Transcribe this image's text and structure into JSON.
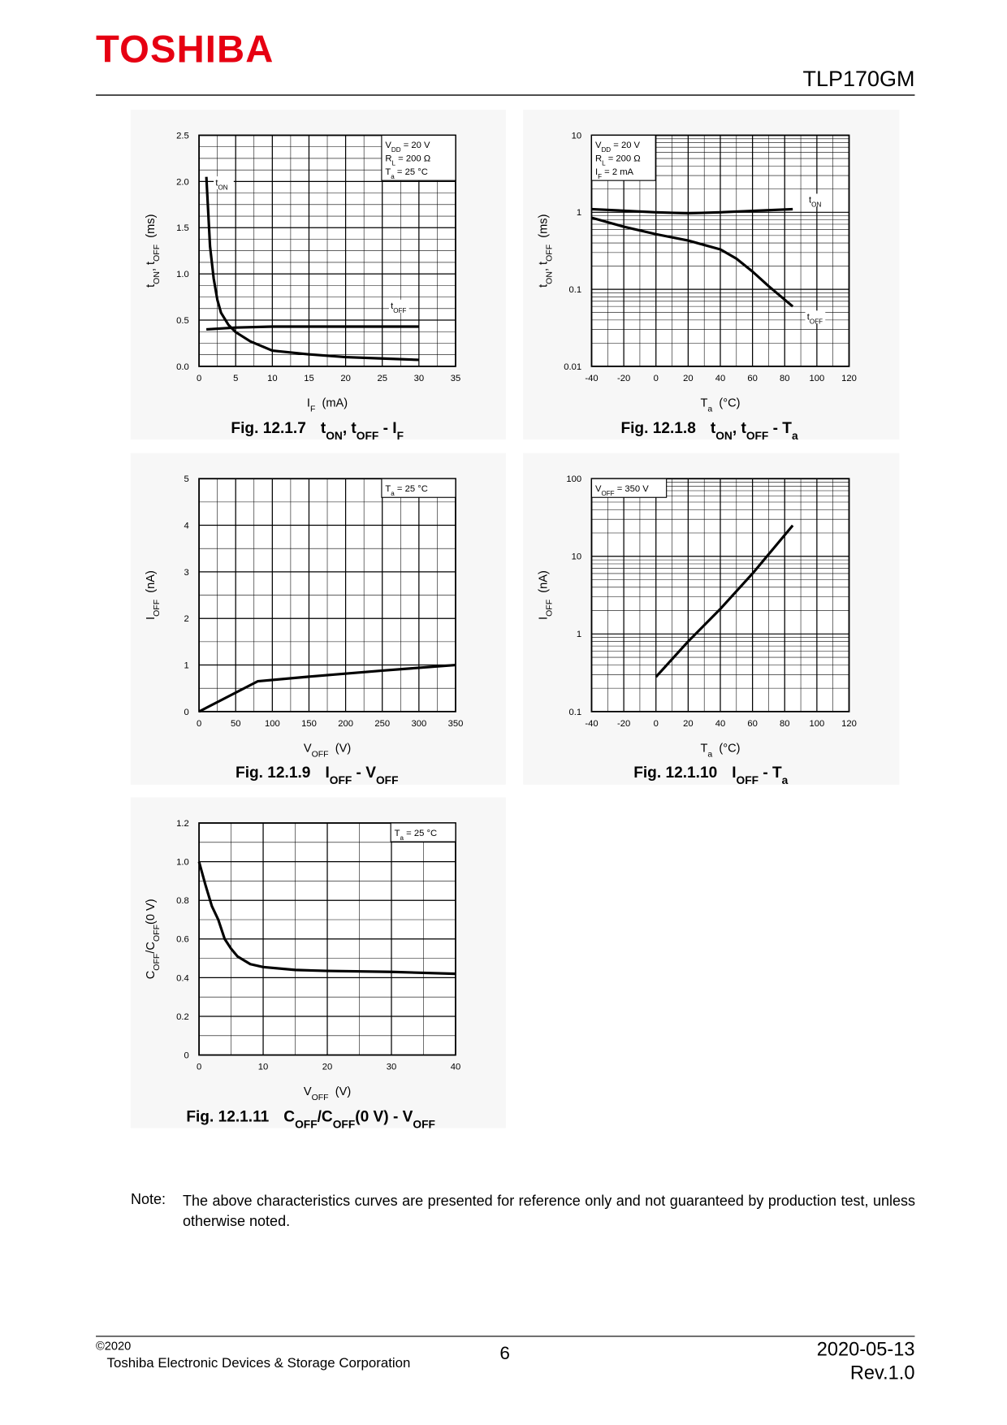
{
  "header": {
    "logo": "TOSHIBA",
    "part": "TLP170GM"
  },
  "chart_data": [
    {
      "type": "line",
      "figure": "Fig. 12.1.7",
      "title": [
        "t",
        "ON",
        ", t",
        "OFF",
        " - I",
        "F"
      ],
      "x_label": [
        "I",
        "F",
        "  (mA)"
      ],
      "y_label": [
        "t",
        "ON",
        ", t",
        "OFF",
        "  (ms)"
      ],
      "conditions": [
        [
          "V",
          "DD",
          " = 20 V"
        ],
        [
          "R",
          "L",
          " = 200 Ω"
        ],
        [
          "T",
          "a",
          " = 25 °C"
        ]
      ],
      "annotation_corner": "upper right",
      "xlim": [
        0,
        35
      ],
      "xticks": [
        0,
        5,
        10,
        15,
        20,
        25,
        30,
        35
      ],
      "ylim": [
        0,
        2.5
      ],
      "yticks": [
        {
          "value": 0,
          "label": "0.0"
        },
        0.5,
        {
          "value": 1,
          "label": "1.0"
        },
        1.5,
        {
          "value": 2,
          "label": "2.0"
        },
        2.5
      ],
      "y_scale": "linear",
      "grid": true,
      "minor_x": 2,
      "minor_y": 4,
      "series": [
        {
          "name": [
            "t",
            "ON"
          ],
          "color": "#000000",
          "x": [
            1,
            1.5,
            2,
            2.5,
            3,
            4,
            5,
            7,
            10,
            15,
            20,
            25,
            30
          ],
          "values": [
            2.05,
            1.3,
            0.95,
            0.72,
            0.58,
            0.45,
            0.37,
            0.27,
            0.17,
            0.13,
            0.1,
            0.085,
            0.07
          ]
        },
        {
          "name": [
            "t",
            "OFF"
          ],
          "color": "#000000",
          "x": [
            1,
            5,
            10,
            30
          ],
          "values": [
            0.4,
            0.42,
            0.43,
            0.43
          ]
        }
      ]
    },
    {
      "type": "line",
      "figure": "Fig. 12.1.8",
      "title": [
        "t",
        "ON",
        ", t",
        "OFF",
        " - T",
        "a"
      ],
      "x_label": [
        "T",
        "a",
        "  (°C)"
      ],
      "y_label": [
        "t",
        "ON",
        ", t",
        "OFF",
        "  (ms)"
      ],
      "conditions": [
        [
          "V",
          "DD",
          " = 20 V"
        ],
        [
          "R",
          "L",
          " = 200 Ω"
        ],
        [
          "I",
          "F",
          " = 2 mA"
        ]
      ],
      "annotation_corner": "upper left",
      "xlim": [
        -40,
        120
      ],
      "xticks": [
        -40,
        -20,
        0,
        20,
        40,
        60,
        80,
        100,
        120
      ],
      "ylim": [
        0.01,
        10
      ],
      "yticks": [
        0.01,
        0.1,
        1,
        10
      ],
      "y_scale": "log",
      "grid": true,
      "minor_x": 2,
      "series": [
        {
          "name": [
            "t",
            "ON"
          ],
          "color": "#000000",
          "x": [
            -40,
            0,
            20,
            40,
            85
          ],
          "values": [
            1.1,
            1.0,
            0.97,
            1.0,
            1.1
          ]
        },
        {
          "name": [
            "t",
            "OFF"
          ],
          "color": "#000000",
          "x": [
            -40,
            -20,
            0,
            20,
            40,
            50,
            60,
            70,
            85
          ],
          "values": [
            0.85,
            0.65,
            0.52,
            0.43,
            0.33,
            0.25,
            0.17,
            0.11,
            0.06
          ]
        }
      ]
    },
    {
      "type": "line",
      "figure": "Fig. 12.1.9",
      "title": [
        "I",
        "OFF",
        " - V",
        "OFF"
      ],
      "x_label": [
        "V",
        "OFF",
        "  (V)"
      ],
      "y_label": [
        "I",
        "OFF",
        "  (nA)"
      ],
      "conditions": [
        [
          "T",
          "a",
          " = 25 °C"
        ]
      ],
      "annotation_corner": "upper right",
      "xlim": [
        0,
        350
      ],
      "xticks": [
        0,
        50,
        100,
        150,
        200,
        250,
        300,
        350
      ],
      "ylim": [
        0,
        5
      ],
      "yticks": [
        0,
        1,
        2,
        3,
        4,
        5
      ],
      "y_scale": "linear",
      "grid": true,
      "minor_x": 2,
      "minor_y": 2,
      "series": [
        {
          "color": "#000000",
          "x": [
            0,
            80,
            150,
            250,
            350
          ],
          "values": [
            0,
            0.65,
            0.75,
            0.88,
            1.0
          ]
        }
      ]
    },
    {
      "type": "line",
      "figure": "Fig. 12.1.10",
      "title": [
        "I",
        "OFF",
        " - T",
        "a"
      ],
      "x_label": [
        "T",
        "a",
        "  (°C)"
      ],
      "y_label": [
        "I",
        "OFF",
        "  (nA)"
      ],
      "conditions": [
        [
          "V",
          "OFF",
          " = 350 V"
        ]
      ],
      "annotation_corner": "upper left",
      "xlim": [
        -40,
        120
      ],
      "xticks": [
        -40,
        -20,
        0,
        20,
        40,
        60,
        80,
        100,
        120
      ],
      "ylim": [
        0.1,
        100
      ],
      "yticks": [
        0.1,
        1,
        10,
        100
      ],
      "y_scale": "log",
      "grid": true,
      "minor_x": 2,
      "series": [
        {
          "color": "#000000",
          "x": [
            0,
            20,
            40,
            60,
            85
          ],
          "values": [
            0.28,
            0.8,
            2.1,
            6,
            25
          ]
        }
      ]
    },
    {
      "type": "line",
      "figure": "Fig. 12.1.11",
      "title": [
        "C",
        "OFF",
        "/C",
        "OFF",
        "(0 V) - V",
        "OFF"
      ],
      "x_label": [
        "V",
        "OFF",
        "  (V)"
      ],
      "y_label": [
        "C",
        "OFF",
        "/C",
        "OFF",
        "(0 V)"
      ],
      "conditions": [
        [
          "T",
          "a",
          " = 25 °C"
        ]
      ],
      "annotation_corner": "upper right",
      "xlim": [
        0,
        40
      ],
      "xticks": [
        0,
        10,
        20,
        30,
        40
      ],
      "ylim": [
        0,
        1.2
      ],
      "yticks": [
        0,
        0.2,
        0.4,
        0.6,
        0.8,
        {
          "value": 1,
          "label": "1.0"
        },
        1.2
      ],
      "y_scale": "linear",
      "grid": true,
      "minor_x": 2,
      "minor_y": 2,
      "series": [
        {
          "color": "#000000",
          "x": [
            0,
            1,
            2,
            3,
            4,
            5,
            6,
            8,
            10,
            15,
            20,
            30,
            40
          ],
          "values": [
            1.0,
            0.88,
            0.77,
            0.7,
            0.6,
            0.55,
            0.51,
            0.47,
            0.455,
            0.44,
            0.435,
            0.43,
            0.42
          ]
        }
      ]
    }
  ],
  "note": {
    "label": "Note:",
    "text": "The above characteristics curves are presented for reference only and not guaranteed by production test, unless otherwise noted."
  },
  "footer": {
    "copyright": "©2020",
    "company": "Toshiba Electronic Devices & Storage Corporation",
    "page": "6",
    "date": "2020-05-13",
    "rev": "Rev.1.0"
  }
}
